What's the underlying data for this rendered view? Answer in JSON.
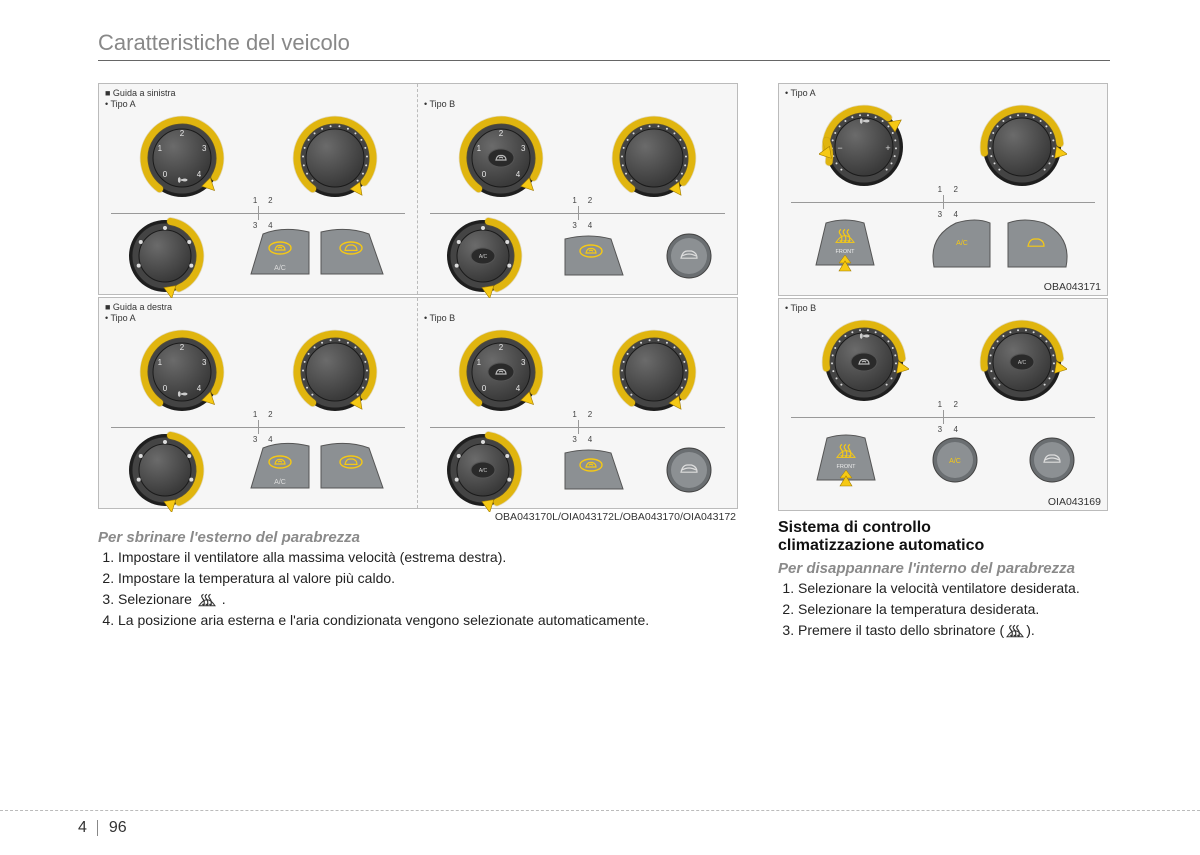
{
  "header": {
    "title": "Caratteristiche del veicolo"
  },
  "labels": {
    "guide_left": "■ Guida a sinistra",
    "guide_right": "■ Guida a destra",
    "tipoA": "• Tipo A",
    "tipoB": "• Tipo B",
    "q1": "1",
    "q2": "2",
    "q3": "3",
    "q4": "4"
  },
  "fig_codes": {
    "left_block": "OBA043170L/OIA043172L/OBA043170/OIA043172",
    "right_top": "OBA043171",
    "right_bottom": "OIA043169"
  },
  "left_text": {
    "subtitle": "Per sbrinare l'esterno del parabrezza",
    "items": [
      "Impostare il ventilatore alla massima velocità (estrema destra).",
      "Impostare la temperatura al valore più caldo.",
      "Selezionare ",
      "La posizione aria esterna e l'aria condizionata vengono selezionate automaticamente."
    ],
    "item3_suffix": " ."
  },
  "right_text": {
    "title_l1": "Sistema di controllo",
    "title_l2": "climatizzazione automatico",
    "subtitle": "Per disappannare l'interno del parabrezza",
    "items": [
      "Selezionare la velocità ventilatore desiderata.",
      "Selezionare la temperatura desiderata.",
      "Premere il tasto dello sbrinatore ("
    ],
    "item3_suffix": ")."
  },
  "dial": {
    "rim_outer": "#2d2d2d",
    "rim_inner": "#555",
    "face_top": "#6b6b6b",
    "face_bottom": "#3a3a3a",
    "arrow": "#f6c914",
    "arrow_stroke": "#a07a00",
    "tick": "#e8e8e8",
    "radius": 40
  },
  "button": {
    "body": "#8c9093",
    "body_dark": "#6a6e71",
    "accent": "#f6c914"
  },
  "footer": {
    "chapter": "4",
    "page": "96"
  }
}
